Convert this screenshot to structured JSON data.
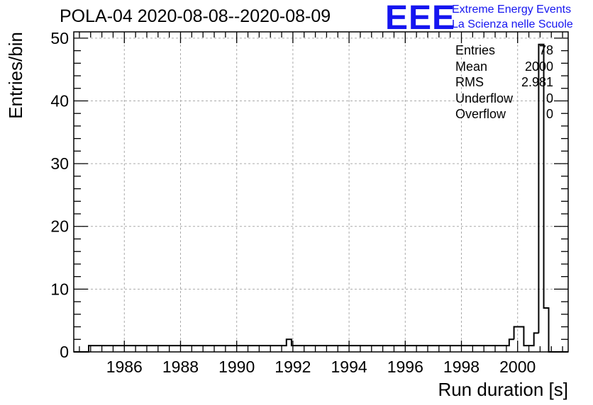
{
  "title": "POLA-04 2020-08-08--2020-08-09",
  "logo": {
    "mark": "EEE",
    "line1": "Extreme Energy Events",
    "line2": "La Scienza nelle Scuole",
    "color": "#1515f0"
  },
  "stats": [
    {
      "label": "Entries",
      "value": "78"
    },
    {
      "label": "Mean",
      "value": "2000"
    },
    {
      "label": "RMS",
      "value": "2.981"
    },
    {
      "label": "Underflow",
      "value": "0"
    },
    {
      "label": "Overflow",
      "value": "0"
    }
  ],
  "chart_data": {
    "type": "bar",
    "title": "POLA-04 2020-08-08--2020-08-09",
    "xlabel": "Run duration [s]",
    "ylabel": "Entries/bin",
    "xlim": [
      1984.2,
      2001.8
    ],
    "ylim": [
      0,
      51
    ],
    "grid": true,
    "x_ticks": [
      1986,
      1988,
      1990,
      1992,
      1994,
      1996,
      1998,
      2000
    ],
    "y_ticks": [
      0,
      10,
      20,
      30,
      40,
      50
    ],
    "bin_width": 0.176,
    "bins": [
      {
        "x": 1984.73,
        "count": 1
      },
      {
        "x": 1988.25,
        "count": 1
      },
      {
        "x": 1991.77,
        "count": 2
      },
      {
        "x": 1991.95,
        "count": 1
      },
      {
        "x": 1994.59,
        "count": 1
      },
      {
        "x": 1994.94,
        "count": 1
      },
      {
        "x": 1995.82,
        "count": 1
      },
      {
        "x": 1996.18,
        "count": 1
      },
      {
        "x": 1996.35,
        "count": 1
      },
      {
        "x": 1997.58,
        "count": 1
      },
      {
        "x": 1998.99,
        "count": 1
      },
      {
        "x": 1999.7,
        "count": 2
      },
      {
        "x": 1999.87,
        "count": 4
      },
      {
        "x": 2000.22,
        "count": 1
      },
      {
        "x": 2000.58,
        "count": 3
      },
      {
        "x": 2000.75,
        "count": 49
      },
      {
        "x": 2000.93,
        "count": 7
      }
    ],
    "line_color": "#000000"
  }
}
